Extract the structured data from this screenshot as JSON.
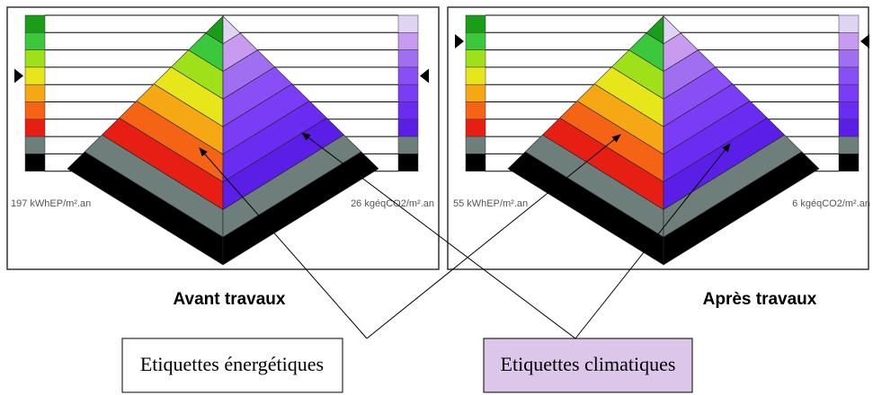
{
  "panels": [
    {
      "energy_label": "197 kWhEP/m².an",
      "climate_label": "26 kgéqCO2/m².an",
      "caption": "Avant travaux"
    },
    {
      "energy_label": "55 kWhEP/m².an",
      "climate_label": "6 kgéqCO2/m².an",
      "caption": "Après travaux"
    }
  ],
  "boxes": {
    "energy": "Etiquettes énergétiques",
    "climate": "Etiquettes climatiques"
  }
}
